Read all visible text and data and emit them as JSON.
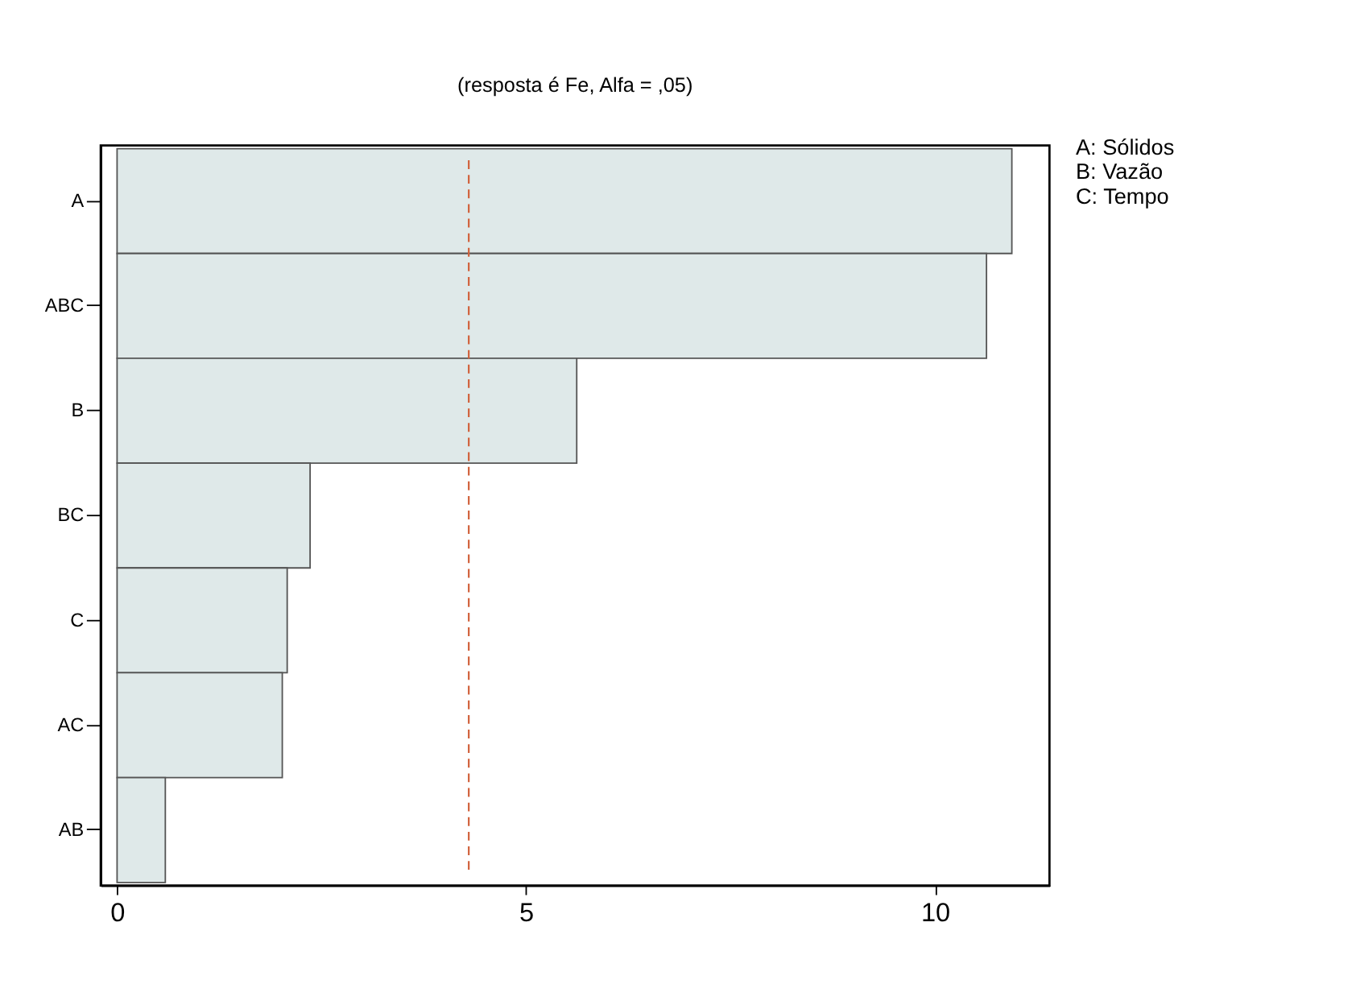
{
  "chart_data": {
    "type": "bar",
    "orientation": "horizontal",
    "title": "(resposta é Fe, Alfa = ,05)",
    "categories": [
      "A",
      "ABC",
      "B",
      "BC",
      "C",
      "AC",
      "AB"
    ],
    "values": [
      10.94,
      10.63,
      5.62,
      2.36,
      2.08,
      2.02,
      0.59
    ],
    "color": "#dfe9e9",
    "xlim": [
      -0.2,
      11.4
    ],
    "xticks": [
      0,
      5,
      10
    ],
    "ref_lines": [
      {
        "axis": "x",
        "value": 4.3,
        "color": "#d0603a",
        "line_style": "dashed"
      }
    ],
    "annotations": [
      "A:  Sólidos",
      "B:  Vazão",
      "C:  Tempo"
    ],
    "grid": false
  }
}
